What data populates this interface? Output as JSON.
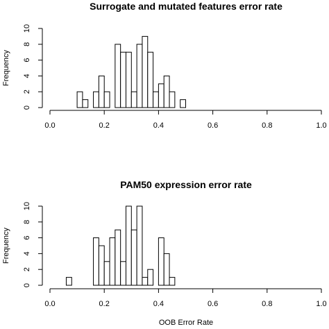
{
  "chart_data": [
    {
      "type": "bar",
      "title": "Surrogate and mutated features error rate",
      "ylabel": "Frequency",
      "xlim": [
        0,
        1
      ],
      "ylim": [
        0,
        10
      ],
      "xticks": [
        "0.0",
        "0.2",
        "0.4",
        "0.6",
        "0.8",
        "1.0"
      ],
      "yticks": [
        "0",
        "2",
        "4",
        "6",
        "8",
        "10"
      ],
      "bin_width": 0.02,
      "bins_start": [
        0.1,
        0.12,
        0.14,
        0.16,
        0.18,
        0.2,
        0.22,
        0.24,
        0.26,
        0.28,
        0.3,
        0.32,
        0.34,
        0.36,
        0.38,
        0.4,
        0.42,
        0.44,
        0.46,
        0.48
      ],
      "values": [
        2,
        1,
        0,
        2,
        4,
        2,
        0,
        8,
        7,
        7,
        2,
        8,
        9,
        7,
        2,
        3,
        4,
        2,
        0,
        1
      ]
    },
    {
      "type": "bar",
      "title": "PAM50 expression error rate",
      "ylabel": "Frequency",
      "xlabel": "OOB Error Rate",
      "xlim": [
        0,
        1
      ],
      "ylim": [
        0,
        10
      ],
      "xticks": [
        "0.0",
        "0.2",
        "0.4",
        "0.6",
        "0.8",
        "1.0"
      ],
      "yticks": [
        "0",
        "2",
        "4",
        "6",
        "8",
        "10"
      ],
      "bin_width": 0.02,
      "bins_start": [
        0.06,
        0.08,
        0.1,
        0.12,
        0.14,
        0.16,
        0.18,
        0.2,
        0.22,
        0.24,
        0.26,
        0.28,
        0.3,
        0.32,
        0.34,
        0.36,
        0.38,
        0.4,
        0.42,
        0.44
      ],
      "values": [
        1,
        0,
        0,
        0,
        0,
        6,
        5,
        3,
        6,
        7,
        3,
        10,
        7,
        10,
        1,
        2,
        0,
        6,
        4,
        1
      ]
    }
  ]
}
